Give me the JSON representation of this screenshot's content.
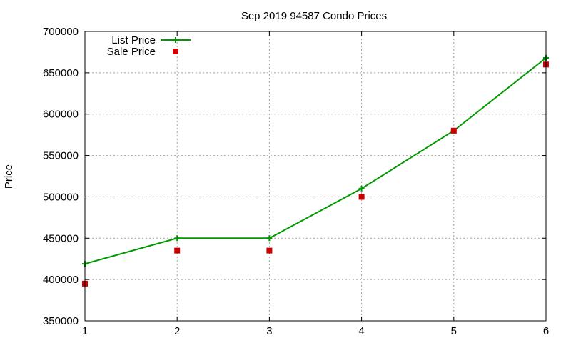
{
  "chart_data": {
    "type": "line",
    "title": "Sep 2019 94587 Condo Prices",
    "xlabel": "",
    "ylabel": "Price",
    "x": [
      1,
      2,
      3,
      4,
      5,
      6
    ],
    "xlim": [
      1,
      6
    ],
    "ylim": [
      350000,
      700000
    ],
    "x_ticks": [
      "1",
      "2",
      "3",
      "4",
      "5",
      "6"
    ],
    "y_ticks": [
      "350000",
      "400000",
      "450000",
      "500000",
      "550000",
      "600000",
      "650000",
      "700000"
    ],
    "grid": true,
    "legend_position": "top-left",
    "series": [
      {
        "name": "List Price",
        "style": "line-points",
        "color": "#009900",
        "values": [
          419000,
          450000,
          450000,
          510000,
          580000,
          668000
        ]
      },
      {
        "name": "Sale Price",
        "style": "points",
        "color": "#cc0000",
        "values": [
          395000,
          435000,
          435000,
          500000,
          580000,
          660000
        ]
      }
    ]
  }
}
